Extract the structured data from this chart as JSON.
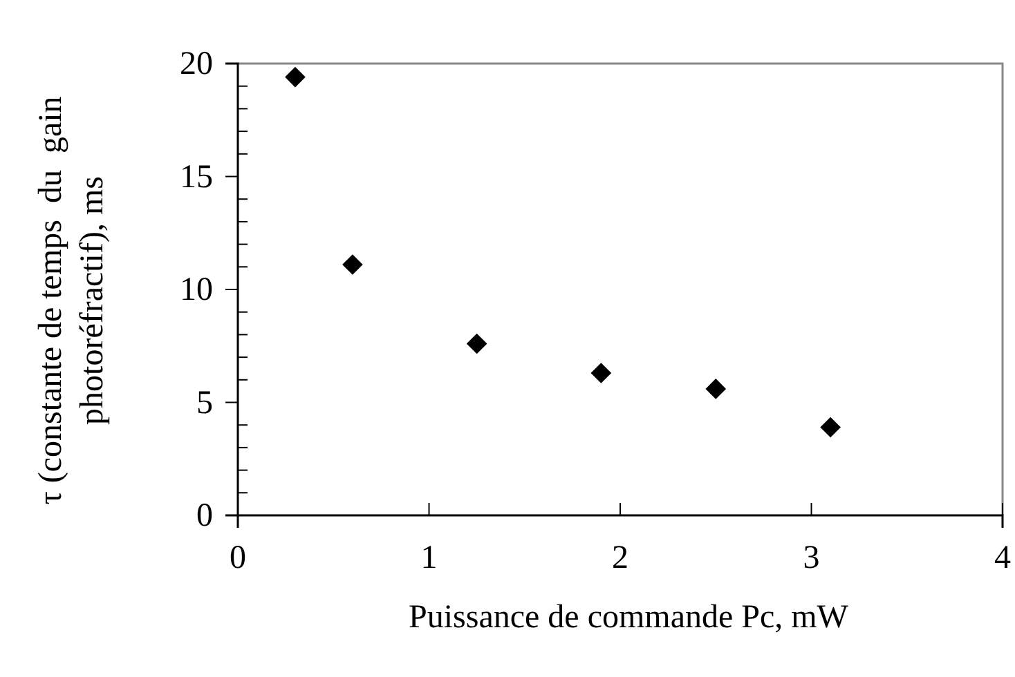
{
  "chart_data": {
    "type": "scatter",
    "xlabel": "Puissance de commande Pc, mW",
    "ylabel": "τ (constante de temps  du  gain\nphotoréfractif), ms",
    "x": [
      0.3,
      0.6,
      1.25,
      1.9,
      2.5,
      3.1
    ],
    "values": [
      19.4,
      11.1,
      7.6,
      6.3,
      5.6,
      3.9
    ],
    "color": "#000000",
    "marker": "diamond",
    "grid": false,
    "xlim": [
      0,
      4
    ],
    "xticks": [
      0,
      1,
      2,
      3,
      4
    ],
    "ylim": [
      0,
      20
    ],
    "yticks": [
      0,
      {
        "value": 1,
        "label": null
      },
      {
        "value": 2,
        "label": null
      },
      {
        "value": 3,
        "label": null
      },
      {
        "value": 4,
        "label": null
      },
      5,
      {
        "value": 6,
        "label": null
      },
      {
        "value": 7,
        "label": null
      },
      {
        "value": 8,
        "label": null
      },
      {
        "value": 9,
        "label": null
      },
      10,
      {
        "value": 11,
        "label": null
      },
      {
        "value": 12,
        "label": null
      },
      {
        "value": 13,
        "label": null
      },
      {
        "value": 14,
        "label": null
      },
      15,
      {
        "value": 16,
        "label": null
      },
      {
        "value": 17,
        "label": null
      },
      {
        "value": 18,
        "label": null
      },
      {
        "value": 19,
        "label": null
      },
      20
    ]
  }
}
